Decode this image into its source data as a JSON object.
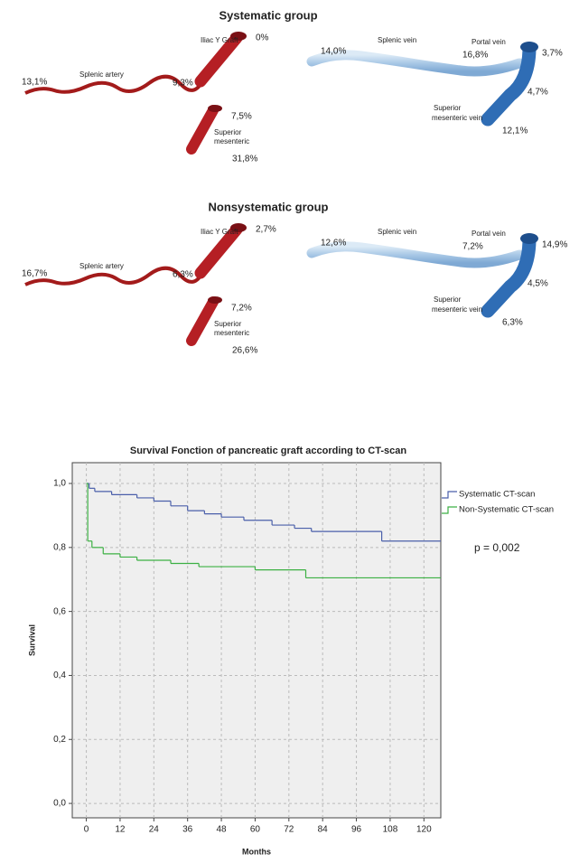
{
  "groups": [
    {
      "title": "Systematic group",
      "artery": {
        "graft": "Iliac Y Graft",
        "graft_pct": "0%",
        "splenic": "Splenic artery",
        "splenic_distal_pct": "13,1%",
        "splenic_proximal_pct": "9,3%",
        "sma_proximal_pct": "7,5%",
        "sma_label": [
          "Superior",
          "mesenteric"
        ],
        "sma_distal_pct": "31,8%"
      },
      "vein": {
        "splenic_distal_pct": "14,0%",
        "splenic": "Splenic vein",
        "splenic_proximal_pct": "16,8%",
        "portal": "Portal vein",
        "portal_pct": "3,7%",
        "smv_proximal_pct": "4,7%",
        "smv_label": [
          "Superior",
          "mesenteric vein"
        ],
        "smv_distal_pct": "12,1%"
      }
    },
    {
      "title": "Nonsystematic group",
      "artery": {
        "graft": "Iliac Y Graft",
        "graft_pct": "2,7%",
        "splenic": "Splenic artery",
        "splenic_distal_pct": "16,7%",
        "splenic_proximal_pct": "6,3%",
        "sma_proximal_pct": "7,2%",
        "sma_label": [
          "Superior",
          "mesenteric"
        ],
        "sma_distal_pct": "26,6%"
      },
      "vein": {
        "splenic_distal_pct": "12,6%",
        "splenic": "Splenic vein",
        "splenic_proximal_pct": "7,2%",
        "portal": "Portal vein",
        "portal_pct": "14,9%",
        "smv_proximal_pct": "4,5%",
        "smv_label": [
          "Superior",
          "mesenteric vein"
        ],
        "smv_distal_pct": "6,3%"
      }
    }
  ],
  "chart_data": {
    "type": "step",
    "title": "Survival Fonction of pancreatic graft according to CT-scan",
    "xlabel": "Months",
    "ylabel": "Survival",
    "xlim": [
      -5,
      126
    ],
    "xticks": [
      0,
      12,
      24,
      36,
      48,
      60,
      72,
      84,
      96,
      108,
      120
    ],
    "ylim": [
      -0.045,
      1.065
    ],
    "yticks": [
      {
        "value": 0,
        "label": "0,0"
      },
      {
        "value": 0.2,
        "label": "0,2"
      },
      {
        "value": 0.4,
        "label": "0,4"
      },
      {
        "value": 0.6,
        "label": "0,6"
      },
      {
        "value": 0.8,
        "label": "0,8"
      },
      {
        "value": 1,
        "label": "1,0"
      }
    ],
    "grid": true,
    "series": [
      {
        "name": "Systematic CT-scan",
        "color": "#4a5faa",
        "x": [
          0,
          1,
          3,
          9,
          18,
          24,
          30,
          36,
          42,
          48,
          56,
          66,
          74,
          80,
          105
        ],
        "values": [
          1.0,
          0.985,
          0.975,
          0.965,
          0.955,
          0.945,
          0.93,
          0.915,
          0.905,
          0.895,
          0.885,
          0.87,
          0.86,
          0.85,
          0.82
        ]
      },
      {
        "name": "Non-Systematic CT-scan",
        "color": "#3cb043",
        "x": [
          0,
          0.5,
          2,
          6,
          12,
          18,
          30,
          40,
          60,
          78
        ],
        "values": [
          1.0,
          0.82,
          0.8,
          0.78,
          0.77,
          0.76,
          0.75,
          0.74,
          0.73,
          0.705
        ]
      }
    ],
    "annotation": "p = 0,002"
  }
}
